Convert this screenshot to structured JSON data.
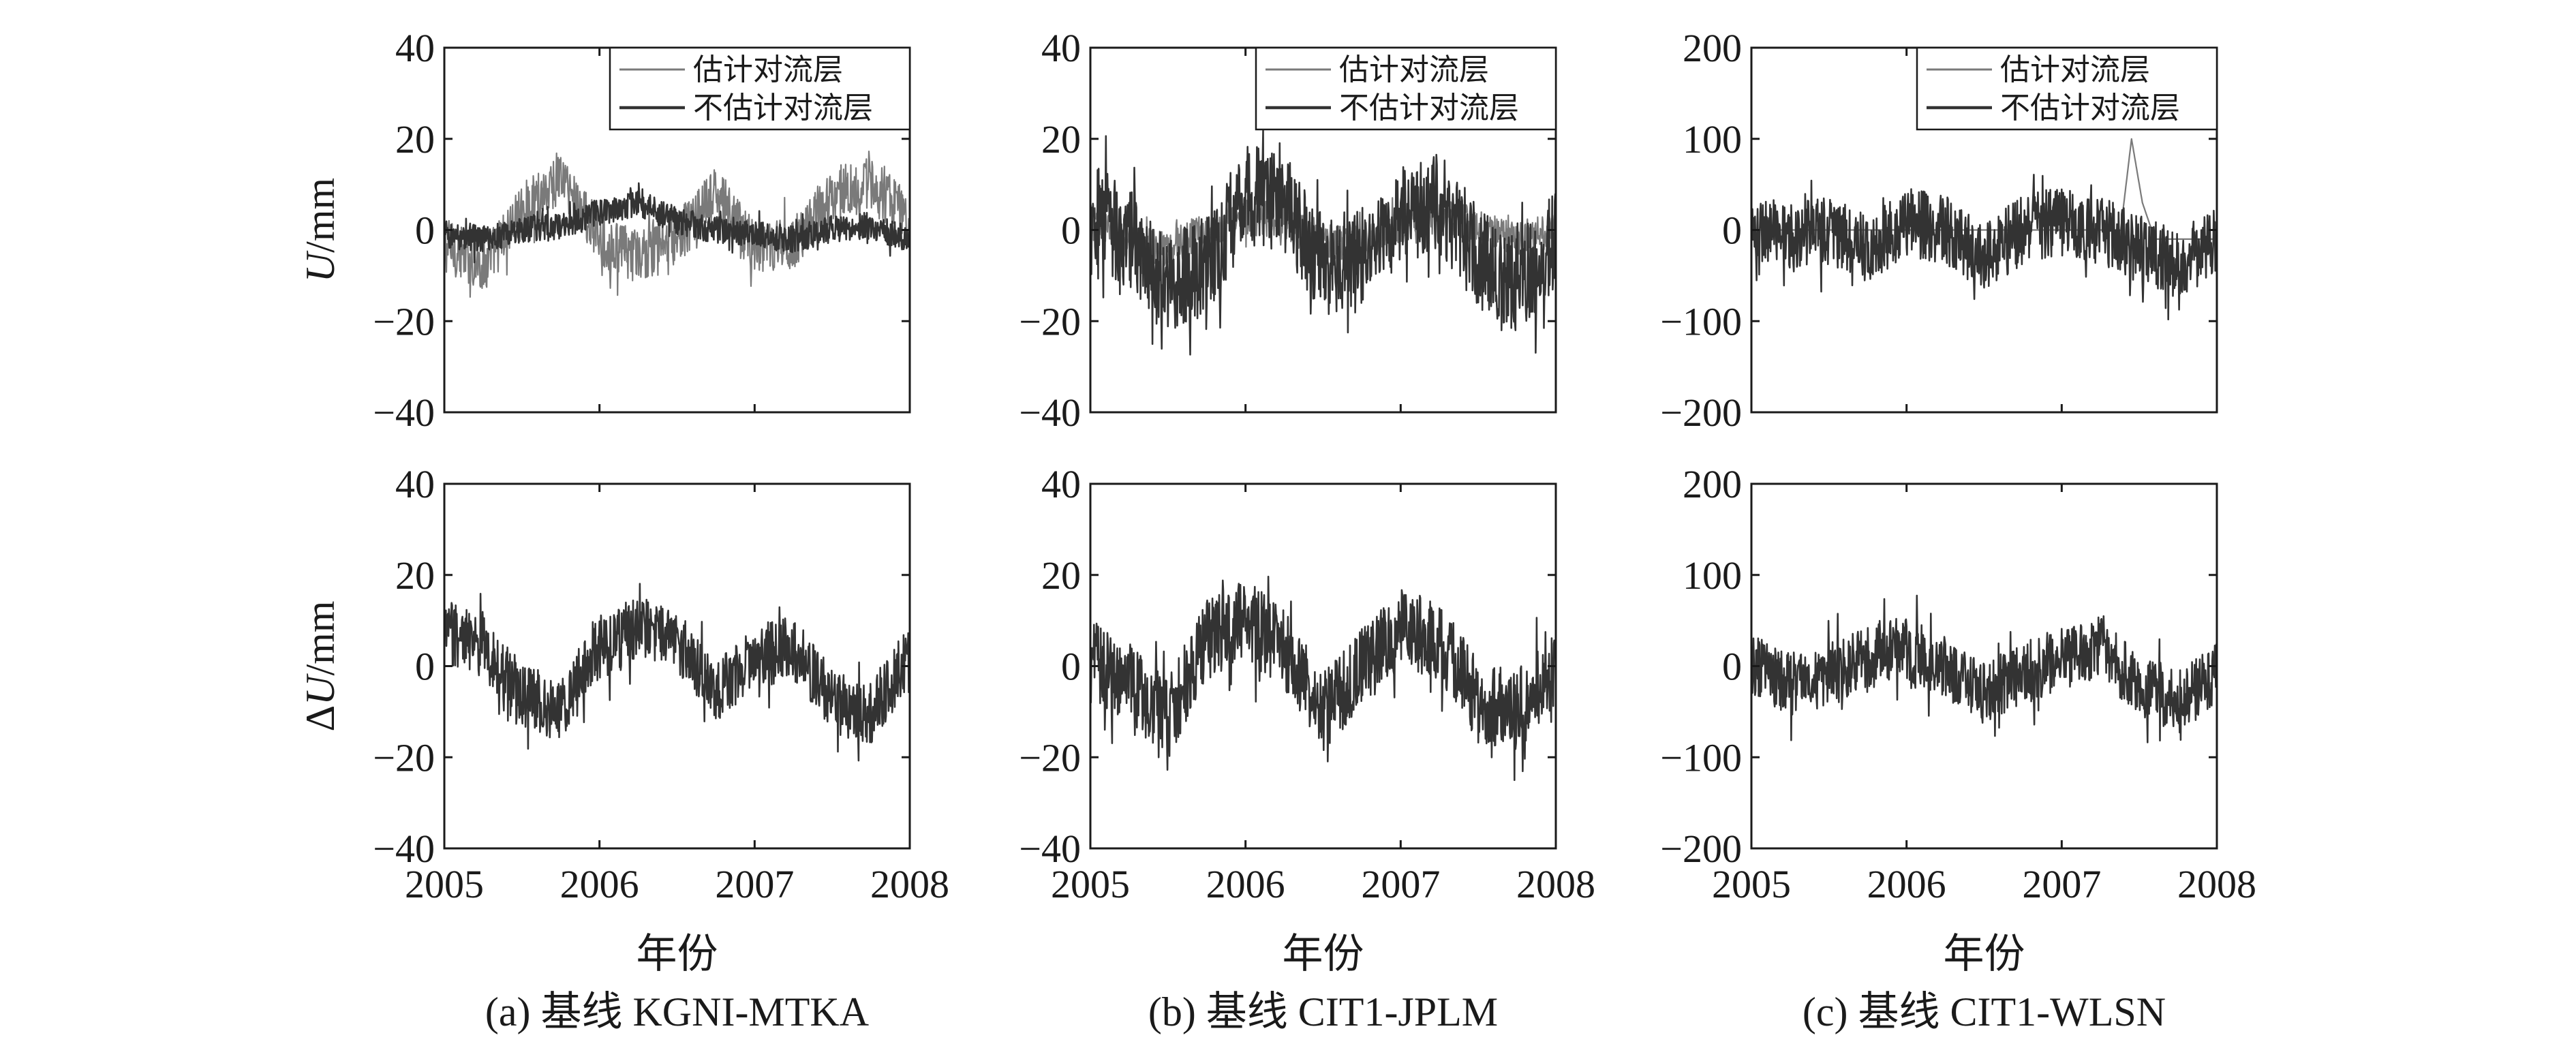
{
  "chart_data": [
    {
      "type": "line",
      "row": "top",
      "column": "a",
      "xlim": [
        2005,
        2008
      ],
      "xticks": [
        "2005",
        "2006",
        "2007",
        "2008"
      ],
      "ylim": [
        -40,
        40
      ],
      "yticks": [
        "40",
        "20",
        "0",
        "−20",
        "−40"
      ],
      "ylabel": "U/mm",
      "legend": {
        "placement": "top-right",
        "entries": [
          "估计对流层",
          "不估计对流层"
        ]
      },
      "series": [
        {
          "name": "估计对流层",
          "color": "#7a7a7a",
          "points": [
            [
              2005.0,
              -3
            ],
            [
              2005.25,
              -8
            ],
            [
              2005.5,
              4
            ],
            [
              2005.75,
              12
            ],
            [
              2006.0,
              -2
            ],
            [
              2006.25,
              -6
            ],
            [
              2006.5,
              -2
            ],
            [
              2006.75,
              8
            ],
            [
              2007.0,
              -4
            ],
            [
              2007.25,
              -3
            ],
            [
              2007.5,
              8
            ],
            [
              2007.75,
              10
            ],
            [
              2008.0,
              2
            ]
          ]
        },
        {
          "name": "不估计对流层",
          "color": "#333333",
          "points": [
            [
              2005.0,
              -1
            ],
            [
              2005.25,
              -2
            ],
            [
              2005.5,
              0
            ],
            [
              2005.75,
              1
            ],
            [
              2006.0,
              4
            ],
            [
              2006.25,
              6
            ],
            [
              2006.5,
              2
            ],
            [
              2006.75,
              0
            ],
            [
              2007.0,
              -1
            ],
            [
              2007.25,
              -2
            ],
            [
              2007.5,
              0
            ],
            [
              2007.75,
              1
            ],
            [
              2008.0,
              -2
            ]
          ]
        }
      ]
    },
    {
      "type": "line",
      "row": "top",
      "column": "b",
      "xlim": [
        2005,
        2008
      ],
      "xticks": [
        "2005",
        "2006",
        "2007",
        "2008"
      ],
      "ylim": [
        -40,
        40
      ],
      "yticks": [
        "40",
        "20",
        "0",
        "−20",
        "−40"
      ],
      "ylabel": "",
      "legend": {
        "placement": "top-right",
        "entries": [
          "估计对流层",
          "不估计对流层"
        ]
      },
      "series": [
        {
          "name": "估计对流层",
          "color": "#7a7a7a",
          "points": [
            [
              2005.0,
              2
            ],
            [
              2005.25,
              -3
            ],
            [
              2005.5,
              -4
            ],
            [
              2005.75,
              0
            ],
            [
              2006.0,
              3
            ],
            [
              2006.25,
              2
            ],
            [
              2006.5,
              -2
            ],
            [
              2006.75,
              -3
            ],
            [
              2007.0,
              1
            ],
            [
              2007.25,
              3
            ],
            [
              2007.5,
              1
            ],
            [
              2007.75,
              -2
            ],
            [
              2008.0,
              0
            ]
          ]
        },
        {
          "name": "不估计对流层",
          "color": "#333333",
          "points": [
            [
              2005.0,
              4
            ],
            [
              2005.25,
              -2
            ],
            [
              2005.5,
              -12
            ],
            [
              2005.75,
              -8
            ],
            [
              2006.0,
              8
            ],
            [
              2006.25,
              6
            ],
            [
              2006.5,
              -8
            ],
            [
              2006.75,
              -6
            ],
            [
              2007.0,
              4
            ],
            [
              2007.25,
              6
            ],
            [
              2007.5,
              -6
            ],
            [
              2007.75,
              -12
            ],
            [
              2008.0,
              -2
            ]
          ]
        }
      ]
    },
    {
      "type": "line",
      "row": "top",
      "column": "c",
      "xlim": [
        2005,
        2008
      ],
      "xticks": [
        "2005",
        "2006",
        "2007",
        "2008"
      ],
      "ylim": [
        -200,
        200
      ],
      "yticks": [
        "200",
        "100",
        "0",
        "−100",
        "−200"
      ],
      "ylabel": "",
      "legend": {
        "placement": "top-right",
        "entries": [
          "估计对流层",
          "不估计对流层"
        ]
      },
      "series": [
        {
          "name": "估计对流层",
          "color": "#7a7a7a",
          "points": [
            [
              2005.0,
              0
            ],
            [
              2005.5,
              0
            ],
            [
              2006.0,
              0
            ],
            [
              2006.5,
              0
            ],
            [
              2007.0,
              0
            ],
            [
              2007.38,
              0
            ],
            [
              2007.45,
              100
            ],
            [
              2007.52,
              30
            ],
            [
              2007.6,
              -10
            ],
            [
              2008.0,
              -10
            ]
          ]
        },
        {
          "name": "不估计对流层",
          "color": "#333333",
          "points": [
            [
              2005.0,
              0
            ],
            [
              2005.25,
              -10
            ],
            [
              2005.5,
              0
            ],
            [
              2005.75,
              -20
            ],
            [
              2006.0,
              10
            ],
            [
              2006.25,
              0
            ],
            [
              2006.5,
              -30
            ],
            [
              2006.75,
              0
            ],
            [
              2007.0,
              10
            ],
            [
              2007.25,
              0
            ],
            [
              2007.5,
              -20
            ],
            [
              2007.75,
              -40
            ],
            [
              2008.0,
              -10
            ]
          ]
        }
      ]
    },
    {
      "type": "line",
      "row": "bottom",
      "column": "a",
      "xlim": [
        2005,
        2008
      ],
      "xticks": [
        "2005",
        "2006",
        "2007",
        "2008"
      ],
      "ylim": [
        -40,
        40
      ],
      "yticks": [
        "40",
        "20",
        "0",
        "−20",
        "−40"
      ],
      "ylabel": "ΔU/mm",
      "xlabel": "年份",
      "series": [
        {
          "color": "#333333",
          "points": [
            [
              2005.0,
              8
            ],
            [
              2005.25,
              4
            ],
            [
              2005.5,
              -6
            ],
            [
              2005.75,
              -10
            ],
            [
              2006.0,
              4
            ],
            [
              2006.25,
              8
            ],
            [
              2006.5,
              6
            ],
            [
              2006.75,
              -6
            ],
            [
              2007.0,
              2
            ],
            [
              2007.25,
              4
            ],
            [
              2007.5,
              -8
            ],
            [
              2007.75,
              -10
            ],
            [
              2008.0,
              2
            ]
          ]
        }
      ]
    },
    {
      "type": "line",
      "row": "bottom",
      "column": "b",
      "xlim": [
        2005,
        2008
      ],
      "xticks": [
        "2005",
        "2006",
        "2007",
        "2008"
      ],
      "ylim": [
        -40,
        40
      ],
      "yticks": [
        "40",
        "20",
        "0",
        "−20",
        "−40"
      ],
      "ylabel": "",
      "xlabel": "年份",
      "series": [
        {
          "color": "#333333",
          "points": [
            [
              2005.0,
              2
            ],
            [
              2005.25,
              -4
            ],
            [
              2005.5,
              -12
            ],
            [
              2005.75,
              6
            ],
            [
              2006.0,
              10
            ],
            [
              2006.25,
              4
            ],
            [
              2006.5,
              -10
            ],
            [
              2006.75,
              0
            ],
            [
              2007.0,
              8
            ],
            [
              2007.25,
              6
            ],
            [
              2007.5,
              -8
            ],
            [
              2007.75,
              -10
            ],
            [
              2008.0,
              0
            ]
          ]
        }
      ]
    },
    {
      "type": "line",
      "row": "bottom",
      "column": "c",
      "xlim": [
        2005,
        2008
      ],
      "xticks": [
        "2005",
        "2006",
        "2007",
        "2008"
      ],
      "ylim": [
        -200,
        200
      ],
      "yticks": [
        "200",
        "100",
        "0",
        "−100",
        "−200"
      ],
      "ylabel": "",
      "xlabel": "年份",
      "series": [
        {
          "color": "#333333",
          "points": [
            [
              2005.0,
              0
            ],
            [
              2005.25,
              -20
            ],
            [
              2005.5,
              -10
            ],
            [
              2005.75,
              10
            ],
            [
              2006.0,
              20
            ],
            [
              2006.25,
              0
            ],
            [
              2006.5,
              -30
            ],
            [
              2006.75,
              -10
            ],
            [
              2007.0,
              10
            ],
            [
              2007.25,
              20
            ],
            [
              2007.5,
              -20
            ],
            [
              2007.75,
              -40
            ],
            [
              2008.0,
              -10
            ]
          ]
        }
      ]
    }
  ],
  "captions": [
    "(a) 基线 KGNI-MTKA",
    "(b) 基线 CIT1-JPLM",
    "(c) 基线 CIT1-WLSN"
  ],
  "colors": {
    "axis": "#1a1a1a",
    "estimated": "#7a7a7a",
    "not_estimated": "#333333"
  }
}
